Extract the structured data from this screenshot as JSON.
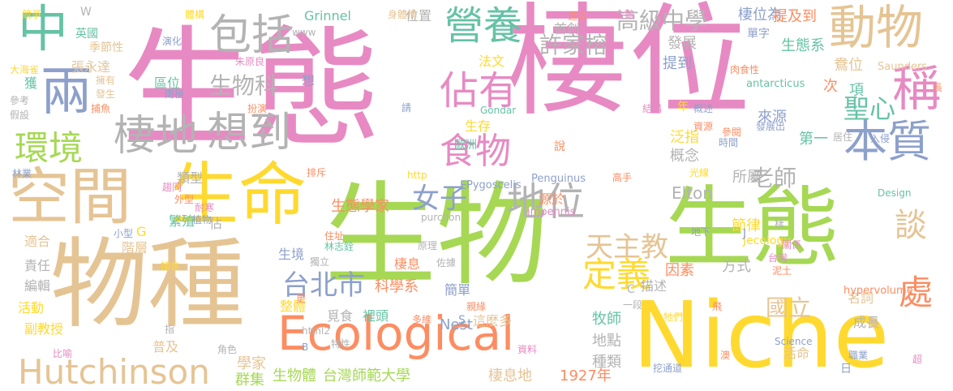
{
  "palette": {
    "pink": "#e78ac3",
    "green": "#a6d854",
    "yellow": "#ffd92f",
    "tan": "#e5c494",
    "teal": "#66c2a5",
    "orange": "#fc8d62",
    "blue": "#8da0cb",
    "gray": "#b3b3b3",
    "background": "#ffffff"
  },
  "words": [
    "棲位",
    "生態",
    "生物",
    "物種",
    "生態",
    "Niche",
    "生命",
    "空間",
    "Ecological",
    "中",
    "兩",
    "環境",
    "包括",
    "棲地",
    "想到",
    "動物",
    "稱",
    "本質",
    "營養",
    "佔有",
    "食物",
    "地位",
    "定義",
    "天主教",
    "女子",
    "台北市",
    "Hutchinson",
    "高級中學",
    "許家榕",
    "處",
    "談",
    "聖心",
    "國立",
    "生物科",
    "老師",
    "生態學家",
    "科學系",
    "學家",
    "台灣師範大學",
    "棲息地",
    "生物體",
    "群集",
    "1927年",
    "Elton",
    "Nest",
    "牧師",
    "地點",
    "種類",
    "因素",
    "方式",
    "節律",
    "所屬",
    "概念",
    "泛指",
    "第一",
    "來源",
    "項",
    "次",
    "生態系",
    "棲位為",
    "鴦位",
    "提及到",
    "單字",
    "發展",
    "提到",
    "首創",
    "位置",
    "Grinnel",
    "張永達",
    "英國",
    "季節性",
    "區位",
    "繁殖",
    "類型",
    "階層",
    "適合",
    "責任",
    "編輯",
    "活動",
    "副教授",
    "普及",
    "生境",
    "整體",
    "棲息",
    "裡頭",
    "簡單",
    "這麼多",
    "覓食",
    "描述",
    "成長",
    "名詞",
    "巢",
    "活命",
    "日",
    "獲",
    "法文",
    "源於",
    "生存",
    "歐洲",
    "Pygoscelis",
    "antarcticus",
    "hypervolume",
    "Saunders",
    "Gondar",
    "Penguinus",
    "impennis",
    "Design",
    "Science",
    "http",
    "Jecology",
    "企鵝",
    "造去",
    "身體構",
    "體構",
    "競爭",
    "演化",
    "大海雀",
    "擁有",
    "發生",
    "參考",
    "假設",
    "捕魚",
    "肉食性",
    "朱原良",
    "南極",
    "扮演",
    "結構",
    "概述",
    "資源",
    "參閱",
    "時間",
    "居住",
    "入侵",
    "高手",
    "光線",
    "趨同",
    "外型",
    "植物",
    "耐寒",
    "林業",
    "林志銓",
    "佐據",
    "原理",
    "住址",
    "獨立",
    "台灣",
    "泥土",
    "比喻",
    "角色",
    "特性",
    "資料",
    "挖通道",
    "職業",
    "澳",
    "超",
    "長",
    "飛",
    "樣",
    "地下",
    "關係",
    "一段",
    "牠們",
    "親緣",
    "多維",
    "purchon",
    "html2",
    "更",
    "小型",
    "捕食",
    "指",
    "說",
    "年",
    "請",
    "www",
    "想",
    "佔",
    "W",
    "G",
    "C",
    "S",
    "E",
    "J",
    "B",
    "排斥",
    "發展出"
  ]
}
